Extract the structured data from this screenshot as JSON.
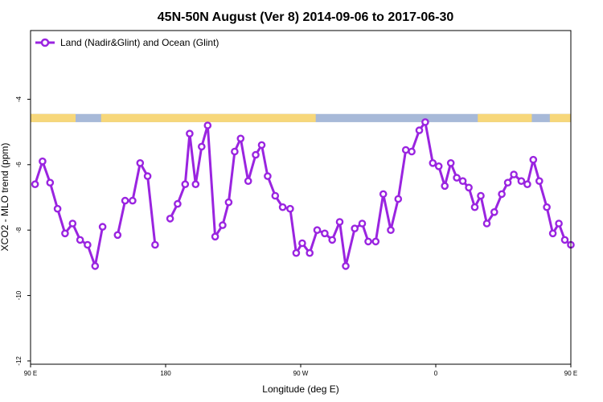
{
  "chart_data": {
    "type": "line",
    "title": "45N-50N August (Ver 8)   2014-09-06 to 2017-06-30",
    "xlabel": "Longitude (deg E)",
    "ylabel": "XCO2 - MLO trend (ppm)",
    "xlim": [
      90,
      450
    ],
    "ylim": [
      -12.1,
      -1.9
    ],
    "x_ticks": [
      {
        "value": 90,
        "label": "90 E"
      },
      {
        "value": 180,
        "label": "180"
      },
      {
        "value": 270,
        "label": "90 W"
      },
      {
        "value": 360,
        "label": "0"
      },
      {
        "value": 450,
        "label": "90 E"
      },
      {
        "value": 540,
        "label": "180"
      }
    ],
    "y_ticks": [
      -12,
      -10,
      -8,
      -6,
      -4
    ],
    "grid": false,
    "legend_position": "top-left",
    "series": [
      {
        "name": "Land (Nadir&Glint) and Ocean (Glint)",
        "color": "#9a24e0",
        "points": [
          [
            93,
            -6.6
          ],
          [
            98,
            -5.9
          ],
          [
            103,
            -6.55
          ],
          [
            108,
            -7.35
          ],
          [
            113,
            -8.1
          ],
          [
            118,
            -7.8
          ],
          [
            123,
            -8.3
          ],
          [
            128,
            -8.45
          ],
          [
            133,
            -9.1
          ],
          [
            138,
            -7.9
          ],
          [
            null,
            null
          ],
          [
            148,
            -8.15
          ],
          [
            153,
            -7.1
          ],
          [
            158,
            -7.1
          ],
          [
            163,
            -5.95
          ],
          [
            168,
            -6.35
          ],
          [
            173,
            -8.45
          ],
          [
            null,
            null
          ],
          [
            183,
            -7.65
          ],
          [
            188,
            -7.2
          ],
          [
            193,
            -6.6
          ],
          [
            196,
            -5.05
          ],
          [
            200,
            -6.6
          ],
          [
            204,
            -5.45
          ],
          [
            208,
            -4.8
          ],
          [
            213,
            -8.2
          ],
          [
            218,
            -7.85
          ],
          [
            222,
            -7.15
          ],
          [
            226,
            -5.6
          ],
          [
            230,
            -5.2
          ],
          [
            235,
            -6.5
          ],
          [
            240,
            -5.7
          ],
          [
            244,
            -5.4
          ],
          [
            248,
            -6.35
          ],
          [
            253,
            -6.95
          ],
          [
            258,
            -7.3
          ],
          [
            263,
            -7.35
          ],
          [
            267,
            -8.7
          ],
          [
            271,
            -8.4
          ],
          [
            276,
            -8.7
          ],
          [
            281,
            -8.0
          ],
          [
            286,
            -8.1
          ],
          [
            291,
            -8.3
          ],
          [
            296,
            -7.75
          ],
          [
            300,
            -9.1
          ],
          [
            306,
            -7.95
          ],
          [
            311,
            -7.8
          ],
          [
            315,
            -8.35
          ],
          [
            320,
            -8.35
          ],
          [
            325,
            -6.9
          ],
          [
            330,
            -8.0
          ],
          [
            335,
            -7.05
          ],
          [
            340,
            -5.55
          ],
          [
            344,
            -5.6
          ],
          [
            349,
            -4.95
          ],
          [
            353,
            -4.7
          ],
          [
            358,
            -5.95
          ],
          [
            362,
            -6.05
          ],
          [
            366,
            -6.65
          ],
          [
            370,
            -5.95
          ],
          [
            374,
            -6.4
          ],
          [
            378,
            -6.5
          ],
          [
            382,
            -6.7
          ],
          [
            386,
            -7.3
          ],
          [
            390,
            -6.95
          ],
          [
            394,
            -7.8
          ],
          [
            399,
            -7.45
          ],
          [
            404,
            -6.9
          ],
          [
            408,
            -6.55
          ],
          [
            412,
            -6.3
          ],
          [
            417,
            -6.5
          ],
          [
            421,
            -6.6
          ],
          [
            425,
            -5.85
          ],
          [
            429,
            -6.5
          ],
          [
            434,
            -7.3
          ],
          [
            438,
            -8.1
          ],
          [
            442,
            -7.8
          ],
          [
            446,
            -8.3
          ],
          [
            450,
            -8.45
          ]
        ]
      }
    ],
    "overlay_band": {
      "y_range": [
        -4.7,
        -4.45
      ],
      "land_color": "#f7d77a",
      "ocean_color": "#a7b9d8",
      "land_spans": [
        [
          90,
          120
        ],
        [
          137,
          280
        ],
        [
          388,
          424
        ],
        [
          436,
          450
        ]
      ]
    }
  }
}
